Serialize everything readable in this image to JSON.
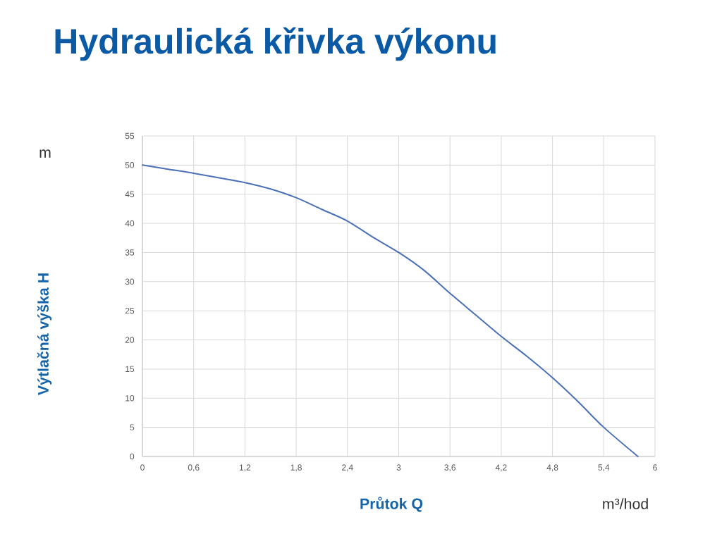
{
  "chart_data": {
    "type": "line",
    "title": "Hydraulická křivka výkonu",
    "xlabel": "Průtok Q",
    "ylabel": "Výtlačná výška H",
    "annotations": [
      "m",
      "m³/hod"
    ],
    "x": [
      0,
      0.3,
      0.6,
      0.9,
      1.2,
      1.5,
      1.8,
      2.1,
      2.4,
      2.7,
      3.0,
      3.3,
      3.6,
      3.9,
      4.2,
      4.5,
      4.8,
      5.1,
      5.4,
      5.8
    ],
    "series": [
      {
        "color": "#4a70b6",
        "values": [
          50,
          49.3,
          48.6,
          47.8,
          47.0,
          45.9,
          44.4,
          42.4,
          40.4,
          37.6,
          35.0,
          31.9,
          28.0,
          24.3,
          20.6,
          17.2,
          13.5,
          9.4,
          5.0,
          0
        ]
      }
    ],
    "xlim": [
      0,
      6
    ],
    "ylim": [
      0,
      55
    ],
    "xticks": [
      0,
      {
        "value": 0.6,
        "label": "0,6"
      },
      {
        "value": 1.2,
        "label": "1,2"
      },
      {
        "value": 1.8,
        "label": "1,8"
      },
      {
        "value": 2.4,
        "label": "2,4"
      },
      3,
      {
        "value": 3.6,
        "label": "3,6"
      },
      {
        "value": 4.2,
        "label": "4,2"
      },
      {
        "value": 4.8,
        "label": "4,8"
      },
      {
        "value": 5.4,
        "label": "5,4"
      },
      6
    ],
    "yticks": [
      0,
      5,
      10,
      15,
      20,
      25,
      30,
      35,
      40,
      45,
      50,
      55
    ],
    "grid": true,
    "line_style": "solid"
  }
}
